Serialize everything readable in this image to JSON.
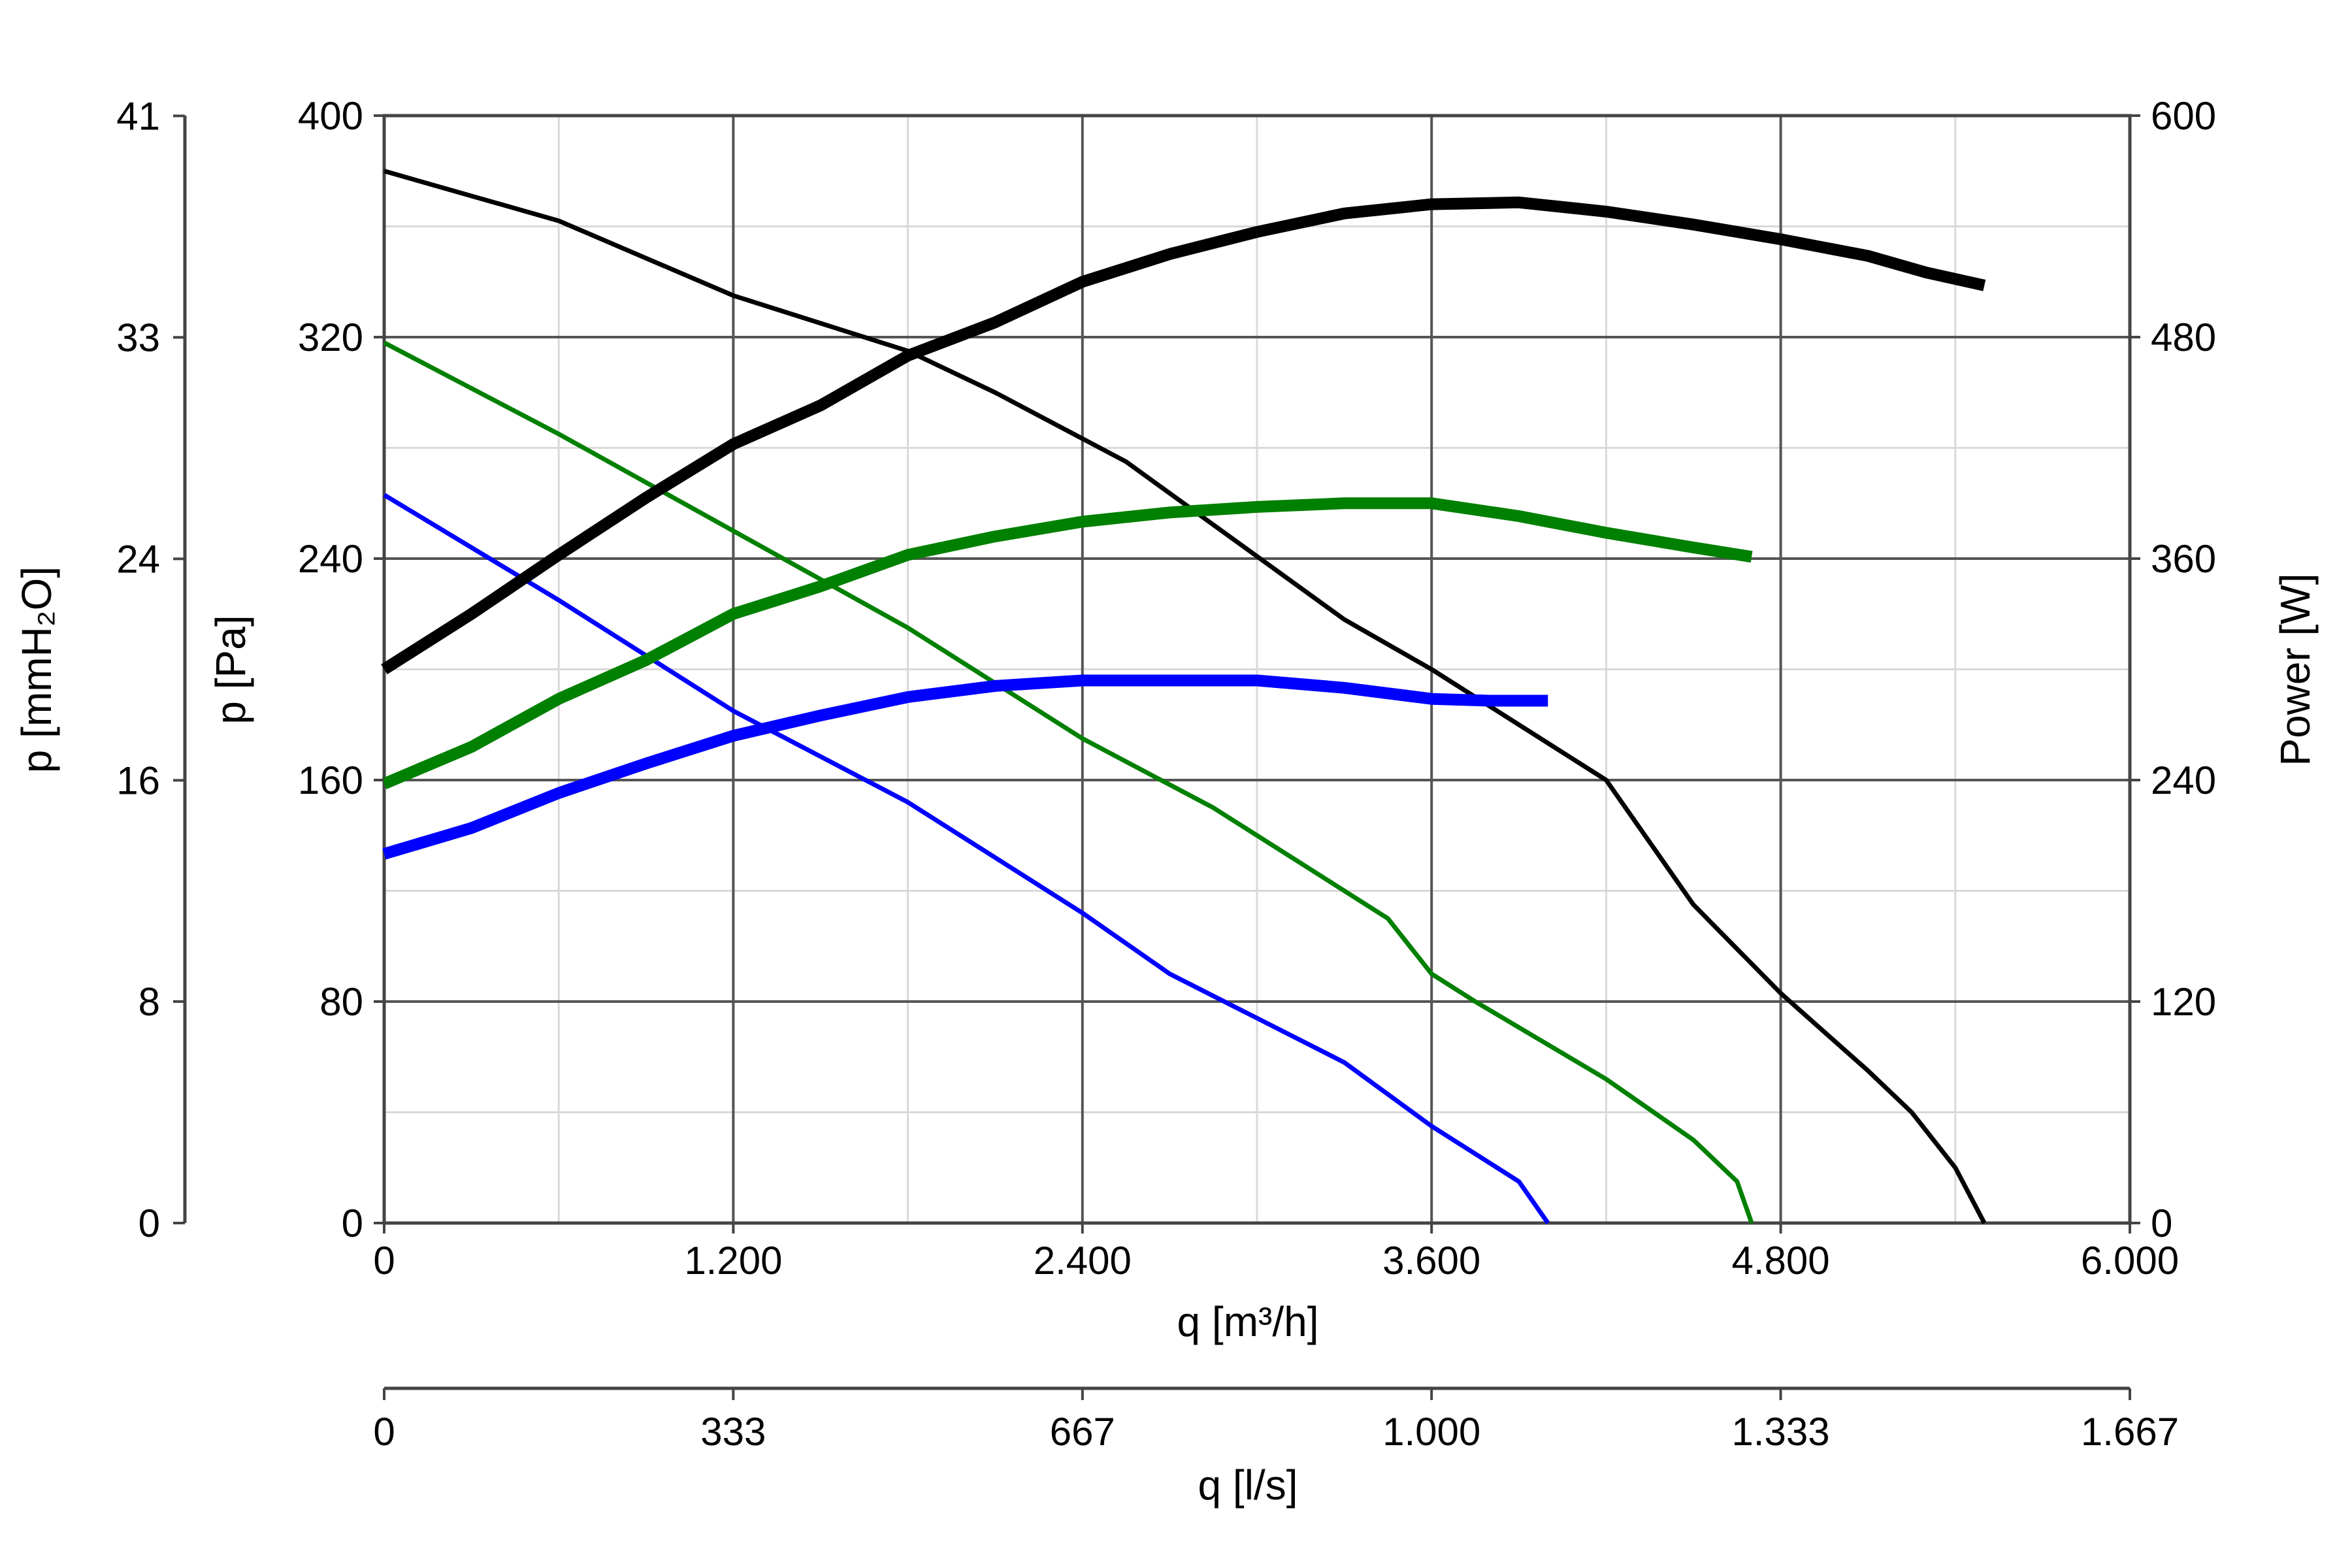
{
  "chart_data": {
    "type": "line",
    "x_axis": {
      "label": "q [m³/h]",
      "range": [
        0,
        6000
      ],
      "ticks": [
        0,
        1200,
        2400,
        3600,
        4800,
        6000
      ],
      "tick_labels": [
        "0",
        "1.200",
        "2.400",
        "3.600",
        "4.800",
        "6.000"
      ],
      "minor_gridlines": [
        600,
        1800,
        3000,
        4200,
        5400
      ]
    },
    "x_axis_secondary": {
      "label": "q [l/s]",
      "range": [
        0,
        1666.7
      ],
      "ticks": [
        0,
        333.3,
        666.7,
        1000,
        1333.3,
        1666.7
      ],
      "tick_labels": [
        "0",
        "333",
        "667",
        "1.000",
        "1.333",
        "1.667"
      ]
    },
    "y_axis": {
      "label": "p [Pa]",
      "range": [
        0,
        400
      ],
      "ticks": [
        0,
        80,
        160,
        240,
        320,
        400
      ],
      "tick_labels": [
        "0",
        "80",
        "160",
        "240",
        "320",
        "400"
      ],
      "minor_gridlines": [
        40,
        120,
        200,
        280,
        360
      ]
    },
    "y_axis_secondary_left": {
      "label": "p [mmH₂O]",
      "range": [
        0,
        40.8
      ],
      "ticks": [
        0,
        8.16,
        16.31,
        24.47,
        32.63,
        40.79
      ],
      "tick_labels": [
        "0",
        "8",
        "16",
        "24",
        "33",
        "41"
      ]
    },
    "y_axis_right": {
      "label": "Power [W]",
      "range": [
        0,
        600
      ],
      "ticks": [
        0,
        120,
        240,
        360,
        480,
        600
      ],
      "tick_labels": [
        "0",
        "120",
        "240",
        "360",
        "480",
        "600"
      ]
    },
    "grid": true,
    "series": [
      {
        "kind": "pressure",
        "axis": "left",
        "color": "#000000",
        "points": [
          [
            0,
            380
          ],
          [
            600,
            362
          ],
          [
            1200,
            335
          ],
          [
            1800,
            315
          ],
          [
            2100,
            300
          ],
          [
            2550,
            275
          ],
          [
            3300,
            218
          ],
          [
            3600,
            200
          ],
          [
            4200,
            160
          ],
          [
            4500,
            115
          ],
          [
            4800,
            83
          ],
          [
            5100,
            55
          ],
          [
            5250,
            40
          ],
          [
            5400,
            20
          ],
          [
            5500,
            0
          ]
        ]
      },
      {
        "kind": "pressure",
        "axis": "left",
        "color": "#008000",
        "points": [
          [
            0,
            318
          ],
          [
            600,
            285
          ],
          [
            1200,
            250
          ],
          [
            1800,
            215
          ],
          [
            2400,
            175
          ],
          [
            2850,
            150
          ],
          [
            3150,
            130
          ],
          [
            3450,
            110
          ],
          [
            3600,
            90
          ],
          [
            3750,
            80
          ],
          [
            4200,
            52
          ],
          [
            4500,
            30
          ],
          [
            4650,
            15
          ],
          [
            4700,
            0
          ]
        ]
      },
      {
        "kind": "pressure",
        "axis": "left",
        "color": "#0000ff",
        "points": [
          [
            0,
            263
          ],
          [
            600,
            225
          ],
          [
            1200,
            185
          ],
          [
            1800,
            152
          ],
          [
            2400,
            112
          ],
          [
            2700,
            90
          ],
          [
            3300,
            58
          ],
          [
            3600,
            35
          ],
          [
            3900,
            15
          ],
          [
            4000,
            0
          ]
        ]
      },
      {
        "kind": "power",
        "axis": "right",
        "color": "#000000",
        "points": [
          [
            0,
            300
          ],
          [
            300,
            330
          ],
          [
            600,
            362
          ],
          [
            900,
            393
          ],
          [
            1200,
            422
          ],
          [
            1500,
            443
          ],
          [
            1800,
            470
          ],
          [
            2100,
            488
          ],
          [
            2400,
            510
          ],
          [
            2700,
            525
          ],
          [
            3000,
            537
          ],
          [
            3300,
            547
          ],
          [
            3600,
            552
          ],
          [
            3900,
            553
          ],
          [
            4200,
            548
          ],
          [
            4500,
            541
          ],
          [
            4800,
            533
          ],
          [
            5100,
            524
          ],
          [
            5300,
            515
          ],
          [
            5500,
            508
          ]
        ]
      },
      {
        "kind": "power",
        "axis": "right",
        "color": "#008000",
        "points": [
          [
            0,
            238
          ],
          [
            300,
            258
          ],
          [
            600,
            284
          ],
          [
            900,
            305
          ],
          [
            1200,
            330
          ],
          [
            1500,
            345
          ],
          [
            1800,
            362
          ],
          [
            2100,
            372
          ],
          [
            2400,
            380
          ],
          [
            2700,
            385
          ],
          [
            3000,
            388
          ],
          [
            3300,
            390
          ],
          [
            3600,
            390
          ],
          [
            3900,
            383
          ],
          [
            4200,
            374
          ],
          [
            4500,
            366
          ],
          [
            4700,
            361
          ]
        ]
      },
      {
        "kind": "power",
        "axis": "right",
        "color": "#0000ff",
        "points": [
          [
            0,
            200
          ],
          [
            300,
            214
          ],
          [
            600,
            233
          ],
          [
            900,
            249
          ],
          [
            1200,
            264
          ],
          [
            1500,
            275
          ],
          [
            1800,
            285
          ],
          [
            2100,
            291
          ],
          [
            2400,
            294
          ],
          [
            2700,
            294
          ],
          [
            3000,
            294
          ],
          [
            3300,
            290
          ],
          [
            3600,
            284
          ],
          [
            3800,
            283
          ],
          [
            4000,
            283
          ]
        ]
      }
    ]
  }
}
